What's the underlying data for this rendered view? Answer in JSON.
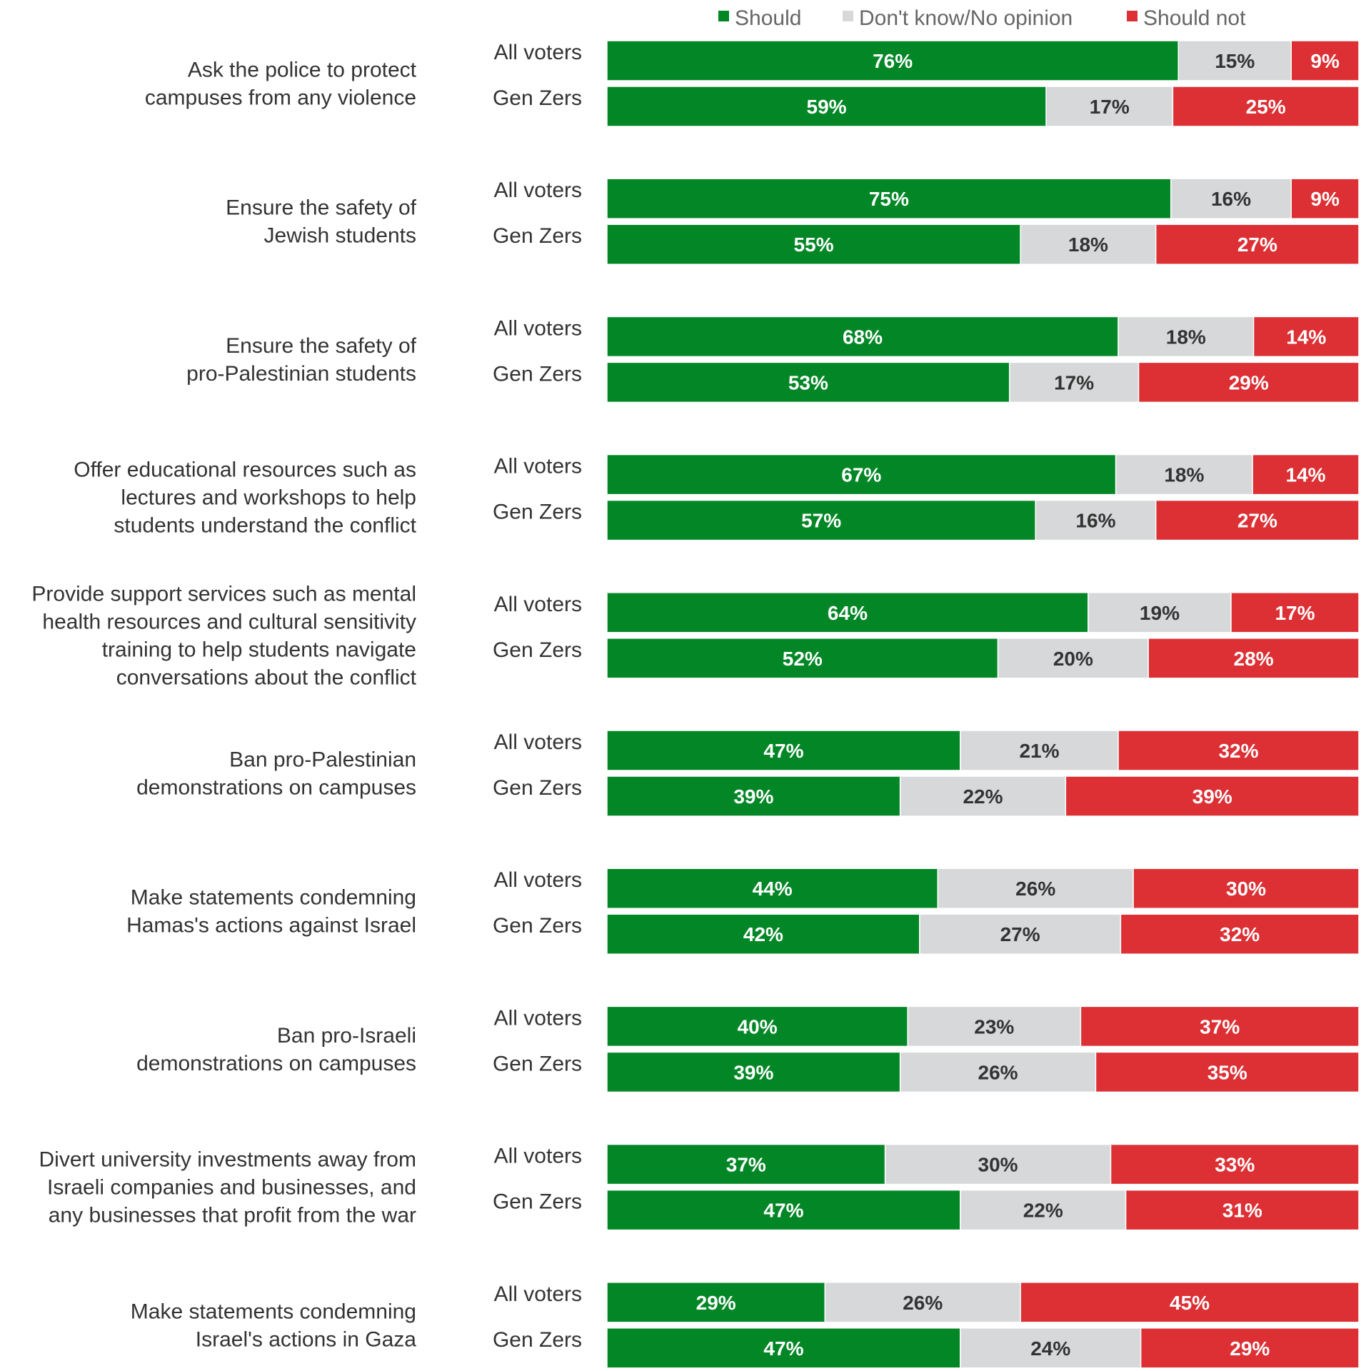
{
  "chart_data": {
    "type": "bar",
    "orientation": "horizontal",
    "stacked": true,
    "legend": {
      "placement": "top",
      "entries": [
        {
          "name": "Should",
          "color": "#038726"
        },
        {
          "name": "Don't know/No opinion",
          "color": "#d6d8d9"
        },
        {
          "name": "Should not",
          "color": "#dc3035"
        }
      ]
    },
    "label_colors": {
      "Should": "#ffffff",
      "Don't know/No opinion": "#333333",
      "Should not": "#ffffff"
    },
    "xlim": [
      0,
      100
    ],
    "categories": [
      {
        "label": [
          "Ask the police to protect",
          "campuses from any violence"
        ],
        "rows": [
          {
            "group": "All voters",
            "values": [
              76,
              15,
              9
            ],
            "labels": [
              "76%",
              "15%",
              "9%"
            ]
          },
          {
            "group": "Gen Zers",
            "values": [
              59,
              17,
              25
            ],
            "labels": [
              "59%",
              "17%",
              "25%"
            ]
          }
        ]
      },
      {
        "label": [
          "Ensure the safety of",
          "Jewish students"
        ],
        "rows": [
          {
            "group": "All voters",
            "values": [
              75,
              16,
              9
            ],
            "labels": [
              "75%",
              "16%",
              "9%"
            ]
          },
          {
            "group": "Gen Zers",
            "values": [
              55,
              18,
              27
            ],
            "labels": [
              "55%",
              "18%",
              "27%"
            ]
          }
        ]
      },
      {
        "label": [
          "Ensure the safety of",
          "pro-Palestinian students"
        ],
        "rows": [
          {
            "group": "All voters",
            "values": [
              68,
              18,
              14
            ],
            "labels": [
              "68%",
              "18%",
              "14%"
            ]
          },
          {
            "group": "Gen Zers",
            "values": [
              53,
              17,
              29
            ],
            "labels": [
              "53%",
              "17%",
              "29%"
            ]
          }
        ]
      },
      {
        "label": [
          "Offer educational resources such as",
          "lectures and workshops to help",
          "students understand the conflict"
        ],
        "rows": [
          {
            "group": "All voters",
            "values": [
              67,
              18,
              14
            ],
            "labels": [
              "67%",
              "18%",
              "14%"
            ]
          },
          {
            "group": "Gen Zers",
            "values": [
              57,
              16,
              27
            ],
            "labels": [
              "57%",
              "16%",
              "27%"
            ]
          }
        ]
      },
      {
        "label": [
          "Provide support services such as mental",
          "health resources and cultural sensitivity",
          "training to help students navigate",
          "conversations about the conflict"
        ],
        "rows": [
          {
            "group": "All voters",
            "values": [
              64,
              19,
              17
            ],
            "labels": [
              "64%",
              "19%",
              "17%"
            ]
          },
          {
            "group": "Gen Zers",
            "values": [
              52,
              20,
              28
            ],
            "labels": [
              "52%",
              "20%",
              "28%"
            ]
          }
        ]
      },
      {
        "label": [
          "Ban pro-Palestinian",
          "demonstrations on campuses"
        ],
        "rows": [
          {
            "group": "All voters",
            "values": [
              47,
              21,
              32
            ],
            "labels": [
              "47%",
              "21%",
              "32%"
            ]
          },
          {
            "group": "Gen Zers",
            "values": [
              39,
              22,
              39
            ],
            "labels": [
              "39%",
              "22%",
              "39%"
            ]
          }
        ]
      },
      {
        "label": [
          "Make statements condemning",
          "Hamas's actions against Israel"
        ],
        "rows": [
          {
            "group": "All voters",
            "values": [
              44,
              26,
              30
            ],
            "labels": [
              "44%",
              "26%",
              "30%"
            ]
          },
          {
            "group": "Gen Zers",
            "values": [
              42,
              27,
              32
            ],
            "labels": [
              "42%",
              "27%",
              "32%"
            ]
          }
        ]
      },
      {
        "label": [
          "Ban pro-Israeli",
          "demonstrations on campuses"
        ],
        "rows": [
          {
            "group": "All voters",
            "values": [
              40,
              23,
              37
            ],
            "labels": [
              "40%",
              "23%",
              "37%"
            ]
          },
          {
            "group": "Gen Zers",
            "values": [
              39,
              26,
              35
            ],
            "labels": [
              "39%",
              "26%",
              "35%"
            ]
          }
        ]
      },
      {
        "label": [
          "Divert university investments away from",
          "Israeli companies and businesses, and",
          "any businesses that profit from the war"
        ],
        "rows": [
          {
            "group": "All voters",
            "values": [
              37,
              30,
              33
            ],
            "labels": [
              "37%",
              "30%",
              "33%"
            ]
          },
          {
            "group": "Gen Zers",
            "values": [
              47,
              22,
              31
            ],
            "labels": [
              "47%",
              "22%",
              "31%"
            ]
          }
        ]
      },
      {
        "label": [
          "Make statements condemning",
          "Israel's actions in Gaza"
        ],
        "rows": [
          {
            "group": "All voters",
            "values": [
              29,
              26,
              45
            ],
            "labels": [
              "29%",
              "26%",
              "45%"
            ]
          },
          {
            "group": "Gen Zers",
            "values": [
              47,
              24,
              29
            ],
            "labels": [
              "47%",
              "24%",
              "29%"
            ]
          }
        ]
      }
    ]
  }
}
